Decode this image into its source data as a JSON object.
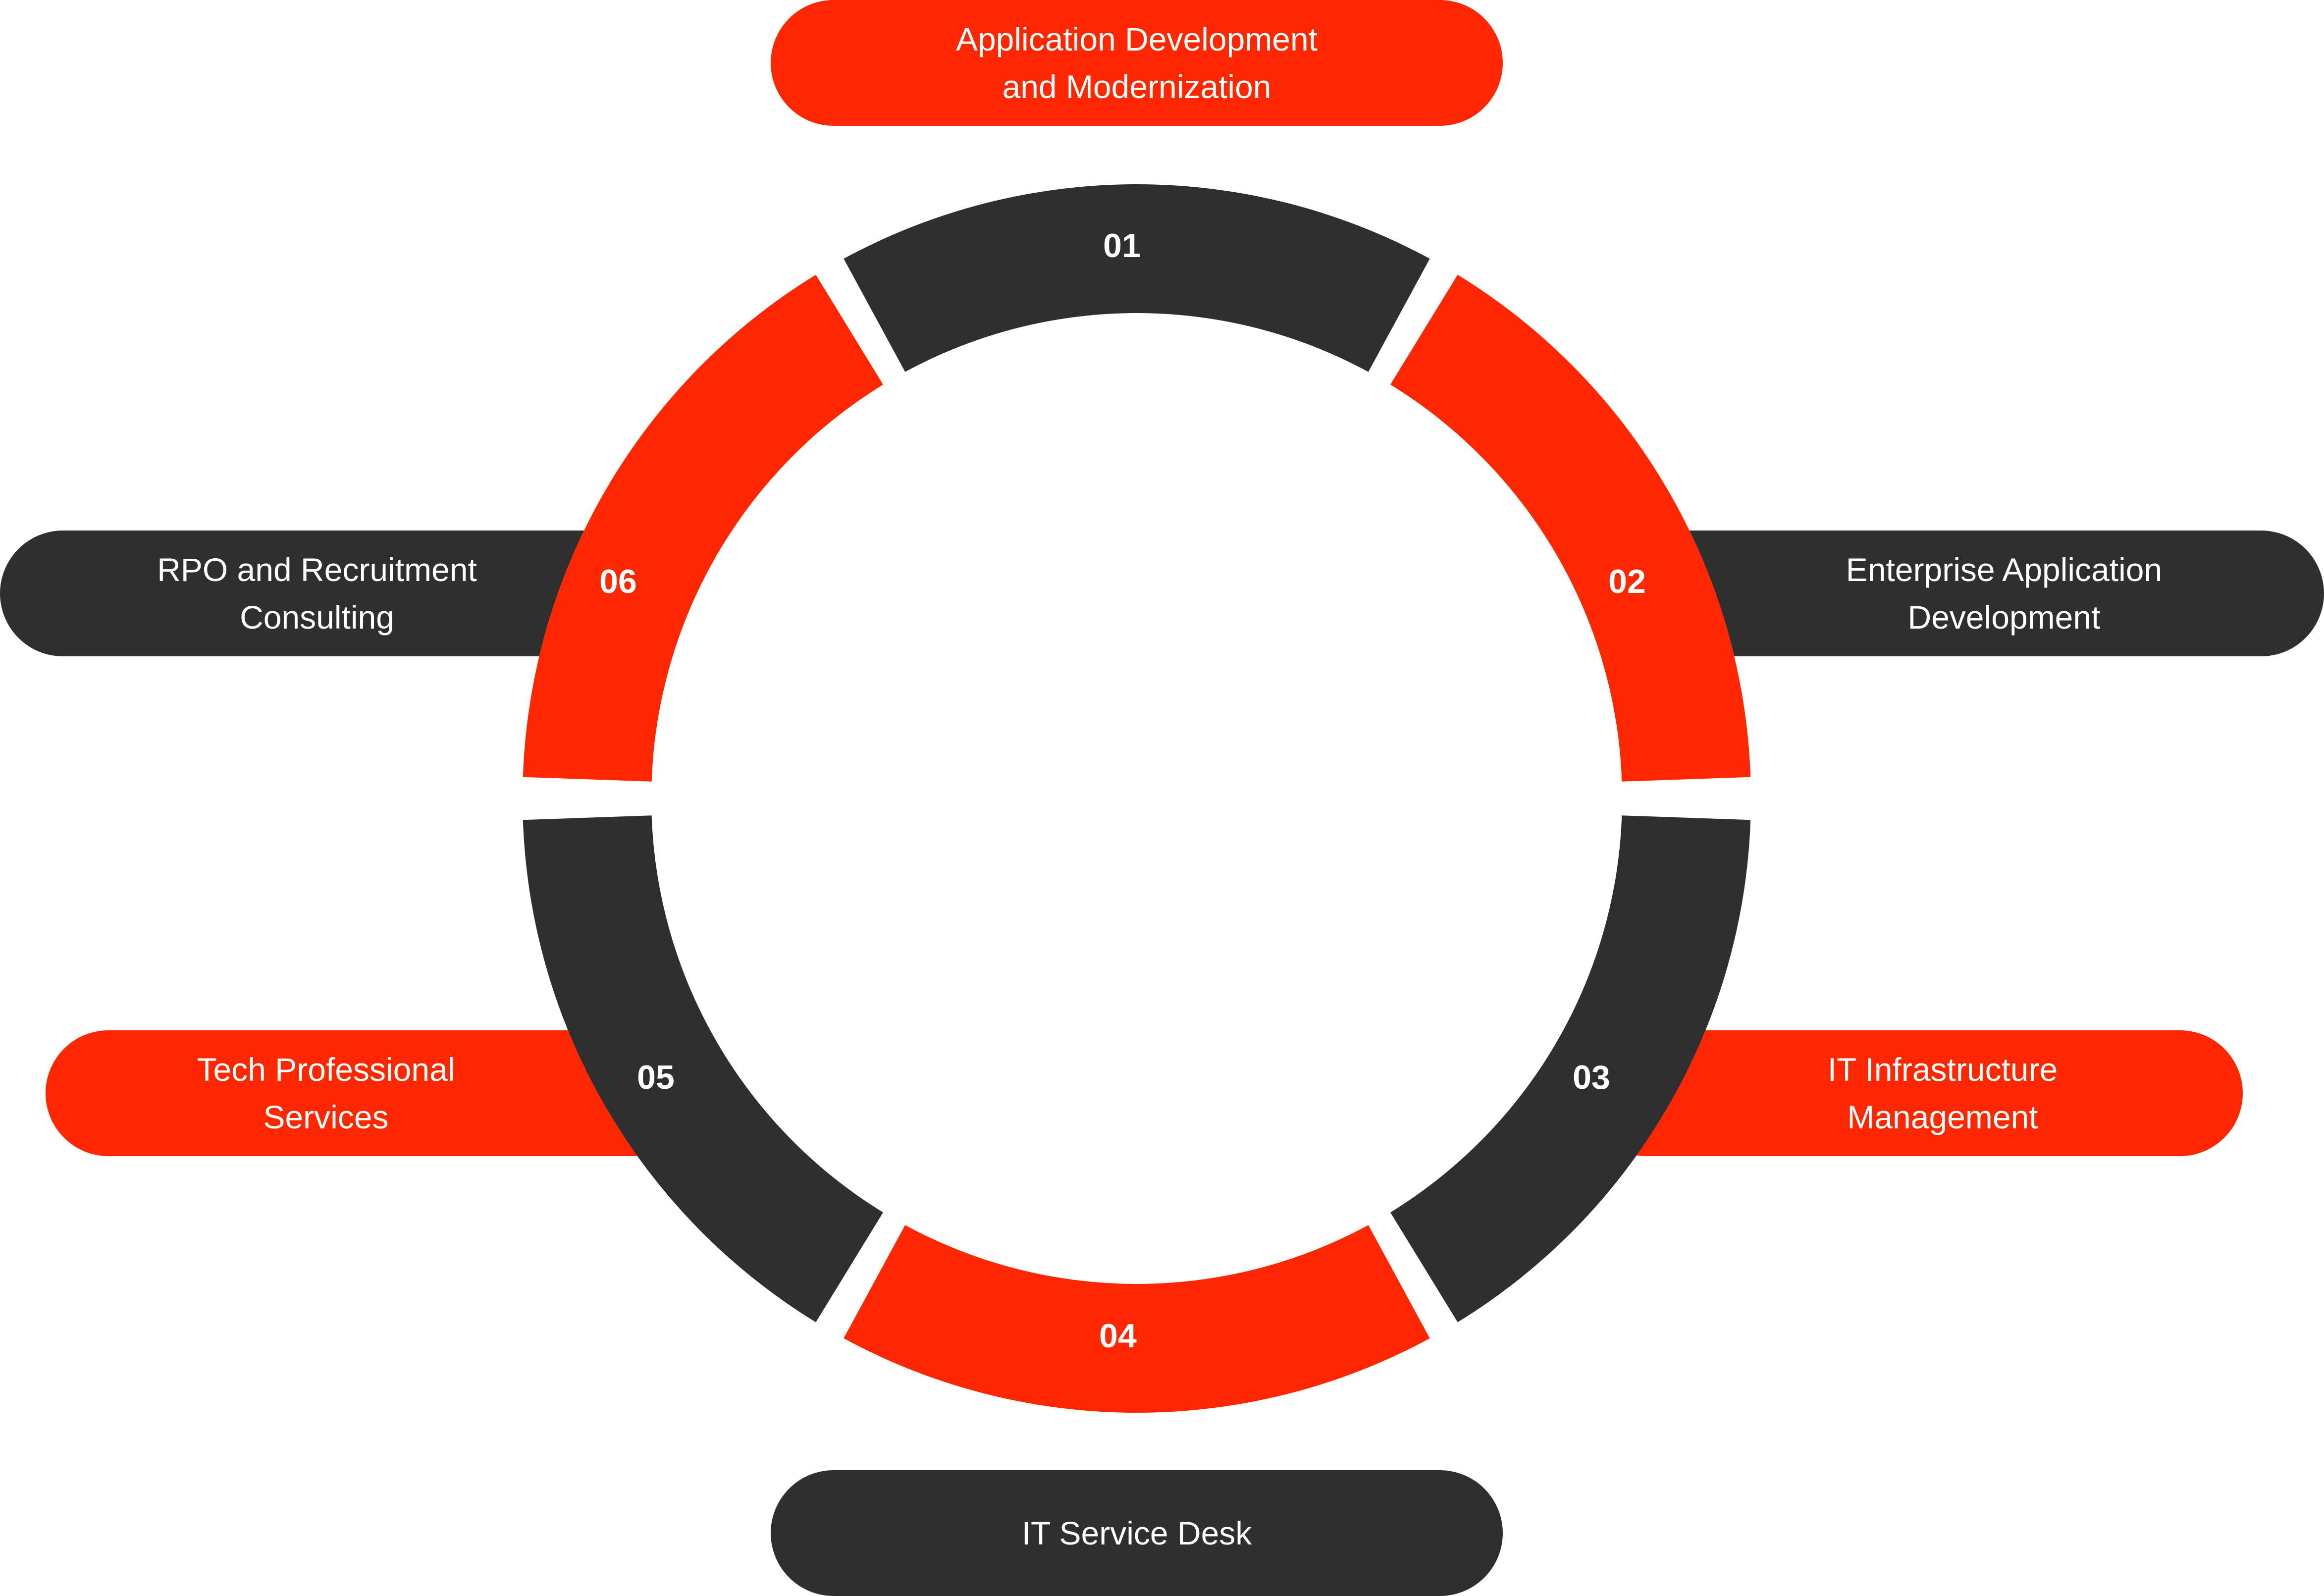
{
  "colors": {
    "red": "#ff2600",
    "dark": "#2f2f2f",
    "background": "#ffffff",
    "text": "#ffffff"
  },
  "segments": [
    {
      "number": "01",
      "color": "dark"
    },
    {
      "number": "02",
      "color": "red"
    },
    {
      "number": "03",
      "color": "dark"
    },
    {
      "number": "04",
      "color": "red"
    },
    {
      "number": "05",
      "color": "dark"
    },
    {
      "number": "06",
      "color": "red"
    }
  ],
  "services": [
    {
      "lines": [
        "Application Development",
        "and Modernization"
      ],
      "color": "red"
    },
    {
      "lines": [
        "Enterprise Application",
        "Development"
      ],
      "color": "dark"
    },
    {
      "lines": [
        "IT Infrastructure",
        "Management"
      ],
      "color": "red"
    },
    {
      "lines": [
        "IT Service Desk"
      ],
      "color": "dark"
    },
    {
      "lines": [
        "Tech Professional",
        "Services"
      ],
      "color": "red"
    },
    {
      "lines": [
        "RPO and Recruitment",
        "Consulting"
      ],
      "color": "dark"
    }
  ]
}
